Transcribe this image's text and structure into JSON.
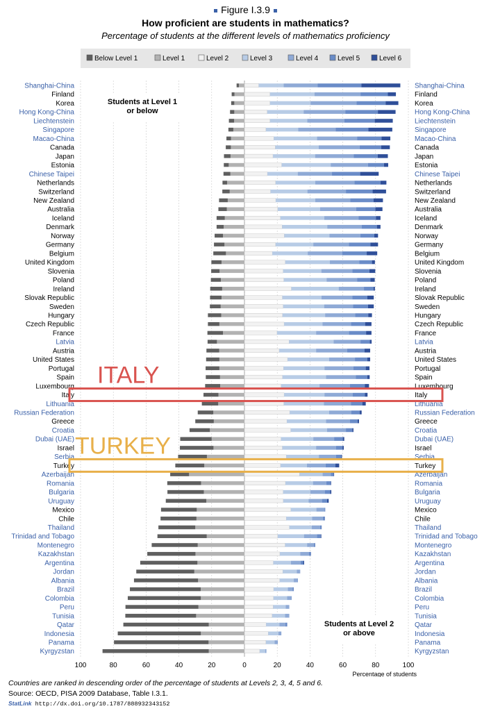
{
  "figure_label": "Figure I.3.9",
  "title": "How proficient are students in mathematics?",
  "subtitle": "Percentage of students at the different levels of mathematics proficiency",
  "footnote": "Countries are ranked in descending order of the percentage of students at Levels 2, 3, 4, 5 and 6.",
  "source": "Source: OECD, PISA 2009 Database, Table I.3.1.",
  "statlink_label": "StatLink",
  "statlink_url": "http://dx.doi.org/10.1787/888932343152",
  "colors": {
    "partner": "#3a60a8",
    "oecd": "#000000",
    "italy_highlight": "#d9534f",
    "turkey_highlight": "#e8b04a"
  },
  "highlights": [
    {
      "text": "ITALY",
      "country": "Italy",
      "color": "#d9534f"
    },
    {
      "text": "TURKEY",
      "country": "Turkey",
      "color": "#e8b04a"
    }
  ],
  "chart_data": {
    "type": "bar",
    "orientation": "horizontal-diverging",
    "xlabel": "Percentage of students",
    "xlim": [
      -100,
      100
    ],
    "ticks": [
      {
        "value": -100,
        "label": "100"
      },
      {
        "value": -80,
        "label": "80"
      },
      {
        "value": -60,
        "label": "60"
      },
      {
        "value": -40,
        "label": "40"
      },
      {
        "value": -20,
        "label": "20"
      },
      {
        "value": 0,
        "label": "0"
      },
      {
        "value": 20,
        "label": "20"
      },
      {
        "value": 40,
        "label": "40"
      },
      {
        "value": 60,
        "label": "60"
      },
      {
        "value": 80,
        "label": "80"
      },
      {
        "value": 100,
        "label": "100"
      }
    ],
    "left_box": [
      "Students at Level 1",
      "or below"
    ],
    "right_box": [
      "Students at Level 2",
      "or above"
    ],
    "series": [
      {
        "name": "Below Level 1",
        "color": "#5f5f5f"
      },
      {
        "name": "Level 1",
        "color": "#b2b2b2"
      },
      {
        "name": "Level 2",
        "color": "#f2f2f2"
      },
      {
        "name": "Level 3",
        "color": "#b8cce6"
      },
      {
        "name": "Level 4",
        "color": "#8faad6"
      },
      {
        "name": "Level 5",
        "color": "#6a8cc8"
      },
      {
        "name": "Level 6",
        "color": "#2f4f99"
      }
    ],
    "categories": [
      "Shanghai-China",
      "Finland",
      "Korea",
      "Hong Kong-China",
      "Liechtenstein",
      "Singapore",
      "Macao-China",
      "Canada",
      "Japan",
      "Estonia",
      "Chinese Taipei",
      "Netherlands",
      "Switzerland",
      "New Zealand",
      "Australia",
      "Iceland",
      "Denmark",
      "Norway",
      "Germany",
      "Belgium",
      "United Kingdom",
      "Slovenia",
      "Poland",
      "Ireland",
      "Slovak Republic",
      "Sweden",
      "Hungary",
      "Czech Republic",
      "France",
      "Latvia",
      "Austria",
      "United States",
      "Portugal",
      "Spain",
      "Luxembourg",
      "Italy",
      "Lithuania",
      "Russian Federation",
      "Greece",
      "Croatia",
      "Dubai (UAE)",
      "Israel",
      "Serbia",
      "Turkey",
      "Azerbaijan",
      "Romania",
      "Bulgaria",
      "Uruguay",
      "Mexico",
      "Chile",
      "Thailand",
      "Trinidad and Tobago",
      "Montenegro",
      "Kazakhstan",
      "Argentina",
      "Jordan",
      "Albania",
      "Brazil",
      "Colombia",
      "Peru",
      "Tunisia",
      "Qatar",
      "Indonesia",
      "Panama",
      "Kyrgyzstan"
    ],
    "partner": [
      true,
      false,
      false,
      true,
      true,
      true,
      true,
      false,
      false,
      false,
      true,
      false,
      false,
      false,
      false,
      false,
      false,
      false,
      false,
      false,
      false,
      false,
      false,
      false,
      false,
      false,
      false,
      false,
      false,
      true,
      false,
      false,
      false,
      false,
      false,
      false,
      true,
      true,
      false,
      true,
      true,
      false,
      true,
      false,
      true,
      true,
      true,
      true,
      false,
      false,
      true,
      true,
      true,
      true,
      true,
      true,
      true,
      true,
      true,
      true,
      true,
      true,
      true,
      true,
      true
    ],
    "values": [
      [
        1.4,
        3.4,
        8.7,
        15.2,
        20.8,
        26.6,
        23.8
      ],
      [
        1.7,
        6.1,
        15.6,
        27.1,
        28.1,
        16.7,
        4.9
      ],
      [
        1.9,
        6.2,
        15.6,
        24.7,
        28.1,
        17.7,
        7.8
      ],
      [
        2.6,
        6.2,
        13.9,
        22.2,
        25.4,
        19.9,
        10.8
      ],
      [
        3.2,
        6.3,
        15.6,
        22.7,
        22.7,
        18.5,
        11.0
      ],
      [
        3.0,
        6.8,
        13.1,
        19.7,
        22.8,
        20.0,
        14.6
      ],
      [
        2.8,
        8.2,
        17.9,
        26.4,
        24.4,
        14.9,
        5.4
      ],
      [
        3.1,
        8.3,
        18.8,
        26.5,
        25.0,
        13.1,
        5.3
      ],
      [
        4.0,
        8.5,
        17.4,
        25.7,
        23.5,
        14.7,
        6.2
      ],
      [
        3.0,
        9.6,
        22.7,
        29.9,
        22.7,
        9.8,
        2.6
      ],
      [
        4.2,
        8.6,
        14.0,
        18.5,
        20.9,
        17.2,
        11.3
      ],
      [
        2.8,
        10.6,
        19.0,
        24.2,
        23.9,
        15.9,
        3.6
      ],
      [
        4.5,
        9.0,
        15.9,
        22.5,
        23.5,
        16.3,
        8.2
      ],
      [
        5.3,
        10.2,
        19.1,
        24.1,
        21.4,
        14.2,
        5.7
      ],
      [
        5.1,
        10.8,
        20.3,
        25.8,
        22.0,
        11.8,
        4.3
      ],
      [
        5.0,
        12.0,
        21.9,
        26.8,
        21.0,
        10.5,
        2.8
      ],
      [
        4.3,
        12.7,
        23.0,
        27.5,
        21.1,
        9.2,
        2.2
      ],
      [
        5.1,
        13.1,
        24.3,
        27.6,
        18.8,
        8.5,
        2.3
      ],
      [
        6.4,
        12.2,
        19.0,
        23.0,
        21.7,
        13.2,
        4.6
      ],
      [
        7.7,
        11.3,
        17.0,
        21.6,
        21.0,
        15.0,
        6.4
      ],
      [
        6.2,
        14.0,
        24.9,
        27.2,
        17.9,
        7.8,
        1.8
      ],
      [
        5.1,
        15.2,
        23.6,
        23.3,
        19.0,
        10.3,
        3.6
      ],
      [
        6.1,
        14.4,
        24.0,
        26.1,
        18.6,
        8.2,
        2.6
      ],
      [
        7.3,
        13.6,
        28.6,
        28.9,
        15.4,
        5.8,
        0.9
      ],
      [
        7.0,
        14.0,
        23.1,
        23.9,
        18.9,
        9.1,
        3.9
      ],
      [
        6.6,
        14.5,
        23.6,
        25.0,
        17.7,
        9.1,
        3.5
      ],
      [
        8.1,
        14.2,
        23.2,
        26.0,
        18.4,
        7.9,
        2.3
      ],
      [
        7.0,
        15.3,
        24.2,
        23.4,
        17.4,
        8.6,
        3.9
      ],
      [
        9.5,
        13.1,
        19.9,
        23.8,
        20.1,
        10.4,
        3.3
      ],
      [
        5.7,
        16.8,
        27.2,
        27.2,
        16.4,
        5.7,
        1.1
      ],
      [
        7.8,
        15.4,
        21.2,
        22.5,
        19.0,
        10.6,
        3.4
      ],
      [
        8.1,
        15.3,
        26.3,
        25.3,
        15.8,
        7.6,
        1.7
      ],
      [
        8.4,
        15.3,
        23.8,
        25.0,
        17.7,
        7.5,
        2.3
      ],
      [
        8.7,
        14.9,
        23.2,
        26.6,
        18.2,
        6.9,
        1.5
      ],
      [
        9.2,
        14.8,
        22.3,
        23.5,
        18.6,
        9.0,
        2.6
      ],
      [
        9.1,
        15.9,
        24.2,
        24.6,
        17.3,
        7.4,
        1.6
      ],
      [
        10.0,
        16.0,
        24.0,
        24.5,
        16.4,
        7.0,
        2.1
      ],
      [
        9.5,
        19.0,
        27.6,
        24.0,
        13.5,
        5.2,
        1.2
      ],
      [
        11.3,
        18.7,
        25.9,
        23.9,
        14.6,
        4.6,
        0.9
      ],
      [
        12.4,
        21.1,
        28.2,
        22.2,
        11.5,
        3.9,
        0.7
      ],
      [
        19.2,
        20.0,
        22.3,
        19.7,
        12.7,
        5.3,
        0.9
      ],
      [
        20.5,
        18.9,
        23.1,
        20.6,
        12.1,
        4.0,
        0.8
      ],
      [
        17.6,
        22.9,
        25.5,
        19.9,
        10.4,
        3.3,
        0.4
      ],
      [
        17.7,
        24.5,
        22.0,
        16.1,
        11.4,
        6.0,
        2.3
      ],
      [
        11.5,
        33.8,
        33.6,
        14.1,
        5.0,
        1.7,
        0.3
      ],
      [
        20.6,
        26.5,
        25.0,
        16.8,
        8.1,
        2.7,
        0.3
      ],
      [
        22.2,
        24.8,
        23.6,
        16.6,
        8.8,
        3.3,
        0.7
      ],
      [
        24.7,
        23.3,
        23.7,
        15.4,
        8.2,
        3.1,
        1.0
      ],
      [
        21.8,
        29.1,
        28.3,
        15.6,
        4.9,
        0.5,
        0.0
      ],
      [
        21.9,
        29.3,
        25.5,
        15.8,
        6.5,
        1.2,
        0.1
      ],
      [
        22.5,
        30.0,
        27.4,
        13.7,
        5.0,
        0.9,
        0.1
      ],
      [
        30.1,
        23.0,
        20.3,
        16.0,
        7.9,
        2.3,
        0.4
      ],
      [
        28.1,
        28.5,
        24.8,
        13.4,
        4.2,
        0.7,
        0.1
      ],
      [
        29.4,
        29.9,
        21.6,
        12.4,
        5.4,
        1.1,
        0.1
      ],
      [
        34.9,
        28.7,
        17.6,
        10.7,
        5.9,
        1.6,
        0.6
      ],
      [
        35.4,
        30.6,
        23.4,
        8.5,
        1.9,
        0.2,
        0.0
      ],
      [
        39.1,
        28.3,
        21.5,
        8.6,
        2.2,
        0.3,
        0.0
      ],
      [
        43.2,
        26.7,
        17.8,
        8.7,
        2.8,
        0.7,
        0.1
      ],
      [
        44.6,
        26.6,
        17.7,
        8.3,
        2.5,
        0.3,
        0.0
      ],
      [
        44.5,
        28.1,
        17.5,
        7.7,
        1.9,
        0.2,
        0.0
      ],
      [
        43.2,
        29.5,
        16.9,
        7.9,
        2.2,
        0.3,
        0.0
      ],
      [
        52.1,
        21.8,
        13.2,
        8.1,
        3.6,
        1.1,
        0.1
      ],
      [
        50.7,
        26.6,
        14.5,
        6.2,
        1.6,
        0.2,
        0.0
      ],
      [
        57.7,
        21.9,
        13.1,
        5.3,
        1.6,
        0.3,
        0.0
      ],
      [
        64.8,
        21.8,
        9.3,
        3.3,
        0.7,
        0.1,
        0.0
      ]
    ]
  }
}
